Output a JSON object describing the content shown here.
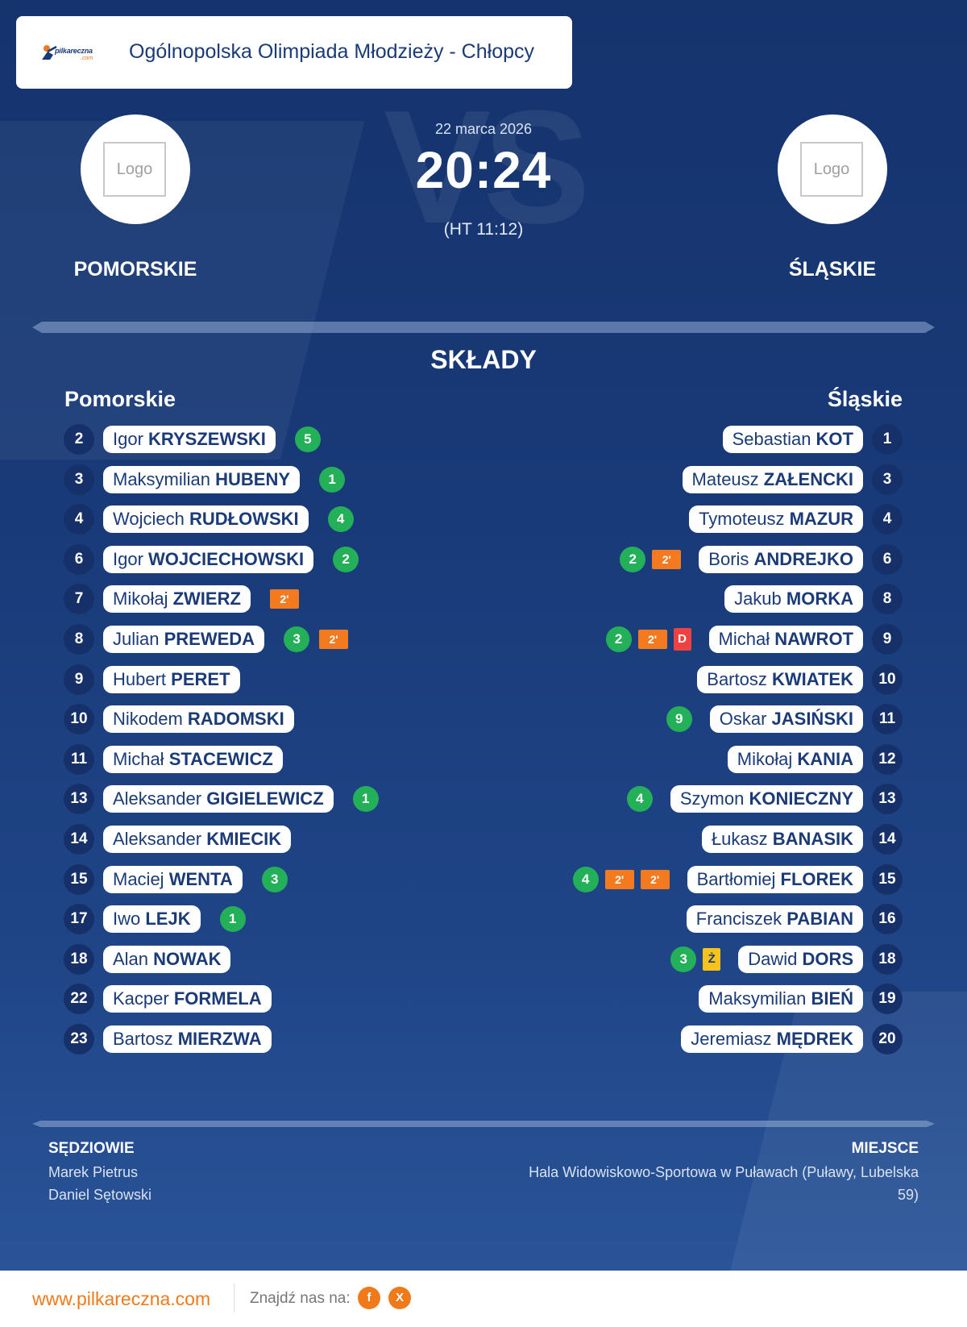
{
  "header": {
    "site_brand": "pilkareczna",
    "site_brand_sub": ".com",
    "title": "Ogólnopolska Olimpiada Młodzieży - Chłopcy"
  },
  "match": {
    "date": "22 marca 2026",
    "score": "20:24",
    "halftime": "(HT 11:12)",
    "vs_watermark": "VS",
    "home": {
      "name": "POMORSKIE",
      "logo_text": "Logo"
    },
    "away": {
      "name": "ŚLĄSKIE",
      "logo_text": "Logo"
    }
  },
  "lineups": {
    "title": "SKŁADY",
    "home_title": "Pomorskie",
    "away_title": "Śląskie",
    "home_players": [
      {
        "num": "2",
        "first": "Igor",
        "last": "KRYSZEWSKI",
        "events": [
          {
            "type": "goal",
            "label": "5"
          }
        ]
      },
      {
        "num": "3",
        "first": "Maksymilian",
        "last": "HUBENY",
        "events": [
          {
            "type": "goal",
            "label": "1"
          }
        ]
      },
      {
        "num": "4",
        "first": "Wojciech",
        "last": "RUDŁOWSKI",
        "events": [
          {
            "type": "goal",
            "label": "4"
          }
        ]
      },
      {
        "num": "6",
        "first": "Igor",
        "last": "WOJCIECHOWSKI",
        "events": [
          {
            "type": "goal",
            "label": "2"
          }
        ]
      },
      {
        "num": "7",
        "first": "Mikołaj",
        "last": "ZWIERZ",
        "events": [
          {
            "type": "susp",
            "label": "2'"
          }
        ]
      },
      {
        "num": "8",
        "first": "Julian",
        "last": "PREWEDA",
        "events": [
          {
            "type": "goal",
            "label": "3"
          },
          {
            "type": "susp",
            "label": "2'"
          }
        ]
      },
      {
        "num": "9",
        "first": "Hubert",
        "last": "PERET",
        "events": []
      },
      {
        "num": "10",
        "first": "Nikodem",
        "last": "RADOMSKI",
        "events": []
      },
      {
        "num": "11",
        "first": "Michał",
        "last": "STACEWICZ",
        "events": []
      },
      {
        "num": "13",
        "first": "Aleksander",
        "last": "GIGIELEWICZ",
        "events": [
          {
            "type": "goal",
            "label": "1"
          }
        ]
      },
      {
        "num": "14",
        "first": "Aleksander",
        "last": "KMIECIK",
        "events": []
      },
      {
        "num": "15",
        "first": "Maciej",
        "last": "WENTA",
        "events": [
          {
            "type": "goal",
            "label": "3"
          }
        ]
      },
      {
        "num": "17",
        "first": "Iwo",
        "last": "LEJK",
        "events": [
          {
            "type": "goal",
            "label": "1"
          }
        ]
      },
      {
        "num": "18",
        "first": "Alan",
        "last": "NOWAK",
        "events": []
      },
      {
        "num": "22",
        "first": "Kacper",
        "last": "FORMELA",
        "events": []
      },
      {
        "num": "23",
        "first": "Bartosz",
        "last": "MIERZWA",
        "events": []
      }
    ],
    "away_players": [
      {
        "num": "1",
        "first": "Sebastian",
        "last": "KOT",
        "events": []
      },
      {
        "num": "3",
        "first": "Mateusz",
        "last": "ZAŁENCKI",
        "events": []
      },
      {
        "num": "4",
        "first": "Tymoteusz",
        "last": "MAZUR",
        "events": []
      },
      {
        "num": "6",
        "first": "Boris",
        "last": "ANDREJKO",
        "events": [
          {
            "type": "goal",
            "label": "2"
          },
          {
            "type": "susp",
            "label": "2'"
          }
        ]
      },
      {
        "num": "8",
        "first": "Jakub",
        "last": "MORKA",
        "events": []
      },
      {
        "num": "9",
        "first": "Michał",
        "last": "NAWROT",
        "events": [
          {
            "type": "goal",
            "label": "2"
          },
          {
            "type": "susp",
            "label": "2'"
          },
          {
            "type": "red",
            "label": "D"
          }
        ]
      },
      {
        "num": "10",
        "first": "Bartosz",
        "last": "KWIATEK",
        "events": []
      },
      {
        "num": "11",
        "first": "Oskar",
        "last": "JASIŃSKI",
        "events": [
          {
            "type": "goal",
            "label": "9"
          }
        ]
      },
      {
        "num": "12",
        "first": "Mikołaj",
        "last": "KANIA",
        "events": []
      },
      {
        "num": "13",
        "first": "Szymon",
        "last": "KONIECZNY",
        "events": [
          {
            "type": "goal",
            "label": "4"
          }
        ]
      },
      {
        "num": "14",
        "first": "Łukasz",
        "last": "BANASIK",
        "events": []
      },
      {
        "num": "15",
        "first": "Bartłomiej",
        "last": "FLOREK",
        "events": [
          {
            "type": "goal",
            "label": "4"
          },
          {
            "type": "susp",
            "label": "2'"
          },
          {
            "type": "susp",
            "label": "2'"
          }
        ]
      },
      {
        "num": "16",
        "first": "Franciszek",
        "last": "PABIAN",
        "events": []
      },
      {
        "num": "18",
        "first": "Dawid",
        "last": "DORS",
        "events": [
          {
            "type": "goal",
            "label": "3"
          },
          {
            "type": "yellow",
            "label": "Ż"
          }
        ]
      },
      {
        "num": "19",
        "first": "Maksymilian",
        "last": "BIEŃ",
        "events": []
      },
      {
        "num": "20",
        "first": "Jeremiasz",
        "last": "MĘDREK",
        "events": []
      }
    ]
  },
  "officials": {
    "label": "SĘDZIOWIE",
    "names": [
      "Marek Pietrus",
      "Daniel Sętowski"
    ]
  },
  "venue": {
    "label": "MIEJSCE",
    "line1": "Hala Widowiskowo-Sportowa w Puławach (Puławy, Lubelska",
    "line2": "59)"
  },
  "footer": {
    "url": "www.pilkareczna.com",
    "find_us": "Znajdź nas na:",
    "social": [
      {
        "icon": "facebook-icon",
        "glyph": "f"
      },
      {
        "icon": "x-icon",
        "glyph": "X"
      }
    ]
  },
  "colors": {
    "navy": "#15336d",
    "goal": "#24b058",
    "suspension": "#f37a1f",
    "red_card": "#ee4242",
    "yellow_card": "#f6c21b",
    "accent_orange": "#f07a1a"
  }
}
